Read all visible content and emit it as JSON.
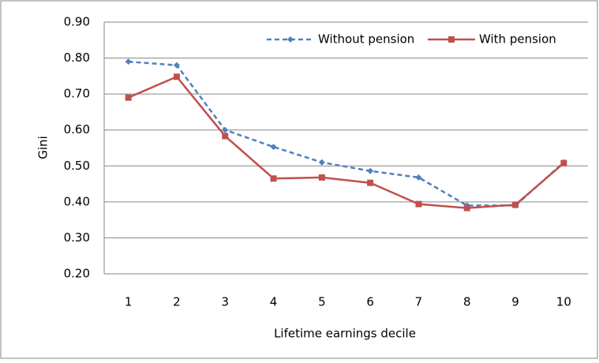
{
  "chart_data": {
    "type": "line",
    "x_label": "Lifetime earnings decile",
    "y_label": "Gini",
    "categories": [
      "1",
      "2",
      "3",
      "4",
      "5",
      "6",
      "7",
      "8",
      "9",
      "10"
    ],
    "series": [
      {
        "name": "Without pension",
        "color": "#4f81bd",
        "line_style": "dashed",
        "marker": "diamond",
        "values": [
          0.79,
          0.78,
          0.6,
          0.553,
          0.51,
          0.486,
          0.468,
          0.39,
          0.39,
          0.51
        ]
      },
      {
        "name": "With pension",
        "color": "#c0504d",
        "line_style": "solid",
        "marker": "square",
        "values": [
          0.69,
          0.748,
          0.583,
          0.465,
          0.468,
          0.453,
          0.394,
          0.383,
          0.392,
          0.508
        ]
      }
    ],
    "ylim": [
      0.2,
      0.9
    ],
    "yticks": [
      {
        "value": 0.2,
        "label": "0.20"
      },
      {
        "value": 0.3,
        "label": "0.30"
      },
      {
        "value": 0.4,
        "label": "0.40"
      },
      {
        "value": 0.5,
        "label": "0.50"
      },
      {
        "value": 0.6,
        "label": "0.60"
      },
      {
        "value": 0.7,
        "label": "0.70"
      },
      {
        "value": 0.8,
        "label": "0.80"
      },
      {
        "value": 0.9,
        "label": "0.90"
      }
    ],
    "grid": true,
    "legend": "top-right"
  }
}
